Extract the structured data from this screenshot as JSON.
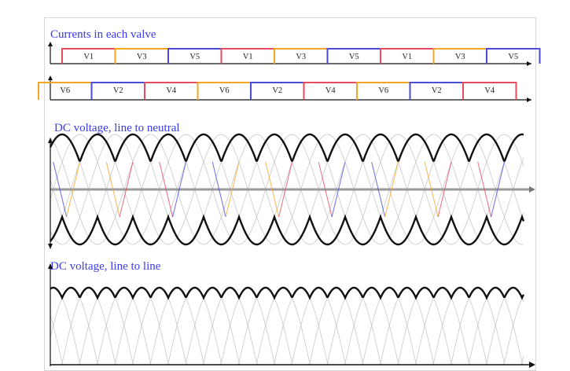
{
  "colors": {
    "title": "#3a3af0",
    "axis": "#111111",
    "envelope": "#111111",
    "grid_curve": "#c8c8c8",
    "phase_red": "#e84a5f",
    "phase_orange": "#f5a623",
    "phase_blue": "#4b4bd8"
  },
  "sections": {
    "currents": {
      "title": "Currents in each valve"
    },
    "neutral": {
      "title": "DC voltage, line to neutral"
    },
    "line": {
      "title": "DC voltage, line to line"
    }
  },
  "rows": {
    "top": {
      "labels": [
        "V1",
        "V3",
        "V5",
        "V1",
        "V3",
        "V5",
        "V1",
        "V3",
        "V5"
      ],
      "label_colors": [
        "red",
        "orange",
        "blue",
        "red",
        "orange",
        "blue",
        "red",
        "orange",
        "blue"
      ]
    },
    "bottom": {
      "labels": [
        "V6",
        "V2",
        "V4",
        "V6",
        "V2",
        "V4",
        "V6",
        "V2",
        "V4"
      ],
      "label_colors": [
        "orange",
        "blue",
        "red",
        "orange",
        "blue",
        "red",
        "orange",
        "blue",
        "red"
      ]
    }
  }
}
